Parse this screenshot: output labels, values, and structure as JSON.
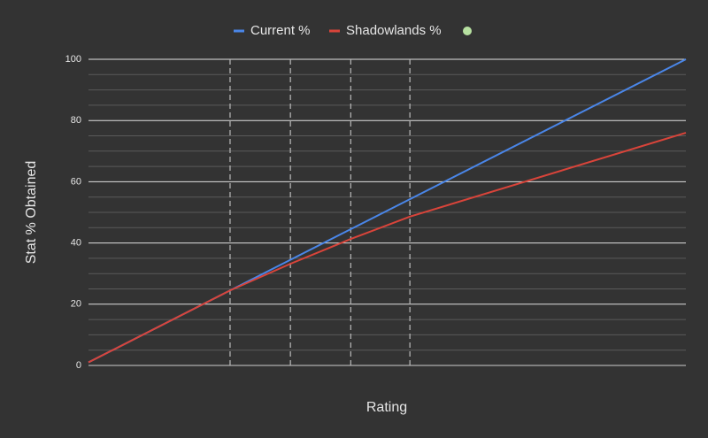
{
  "chart_data": {
    "type": "line",
    "x_label": "Rating",
    "y_label": "Stat % Obtained",
    "x": [
      0,
      23.7,
      33.8,
      43.9,
      53.8,
      100
    ],
    "series": [
      {
        "name": "Current %",
        "color": "#4a86e8",
        "values": [
          1,
          24.5,
          34.5,
          44.5,
          54.3,
          100
        ]
      },
      {
        "name": "Shadowlands %",
        "color": "#d9443a",
        "values": [
          1,
          24.5,
          33.2,
          41.3,
          48.6,
          76
        ]
      }
    ],
    "xlim": [
      0,
      100
    ],
    "ylim": [
      0,
      100
    ],
    "yticks": [
      0,
      20,
      40,
      60,
      80,
      100
    ],
    "y_minor_ticks": [
      5,
      10,
      15,
      25,
      30,
      35,
      45,
      50,
      55,
      65,
      70,
      75,
      85,
      90,
      95
    ],
    "vlines": [
      23.7,
      33.8,
      43.9,
      53.8
    ],
    "grid": true
  }
}
